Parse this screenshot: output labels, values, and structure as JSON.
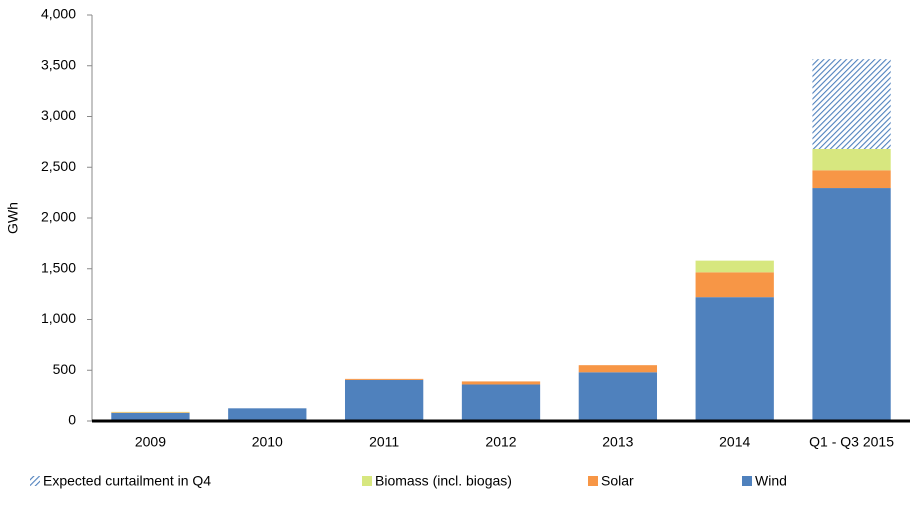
{
  "chart_data": {
    "type": "stacked_bar",
    "y_label": "GWh",
    "categories": [
      "2009",
      "2010",
      "2011",
      "2012",
      "2013",
      "2014",
      "Q1 - Q3 2015"
    ],
    "series": [
      {
        "name": "Expected curtailment in Q4",
        "color": "#4f81bd",
        "hatched": true,
        "values": [
          null,
          null,
          null,
          null,
          null,
          null,
          885
        ]
      },
      {
        "name": "Biomass (incl. biogas)",
        "color": "#d7e77f",
        "values": [
          5,
          0,
          0,
          0,
          0,
          115,
          210
        ]
      },
      {
        "name": "Solar",
        "color": "#f79646",
        "values": [
          5,
          0,
          10,
          30,
          70,
          245,
          175
        ]
      },
      {
        "name": "Wind",
        "color": "#4f81bd",
        "values": [
          80,
          125,
          405,
          360,
          480,
          1220,
          2295
        ]
      }
    ],
    "ylim": [
      0,
      4000
    ],
    "yticks": [
      0,
      500,
      {
        "value": 1000,
        "label": "1,000"
      },
      {
        "value": 1500,
        "label": "1,500"
      },
      {
        "value": 2000,
        "label": "2,000"
      },
      {
        "value": 2500,
        "label": "2,500"
      },
      {
        "value": 3000,
        "label": "3,000"
      },
      {
        "value": 3500,
        "label": "3,500"
      },
      {
        "value": 4000,
        "label": "4,000"
      }
    ],
    "legend": "bottom"
  }
}
